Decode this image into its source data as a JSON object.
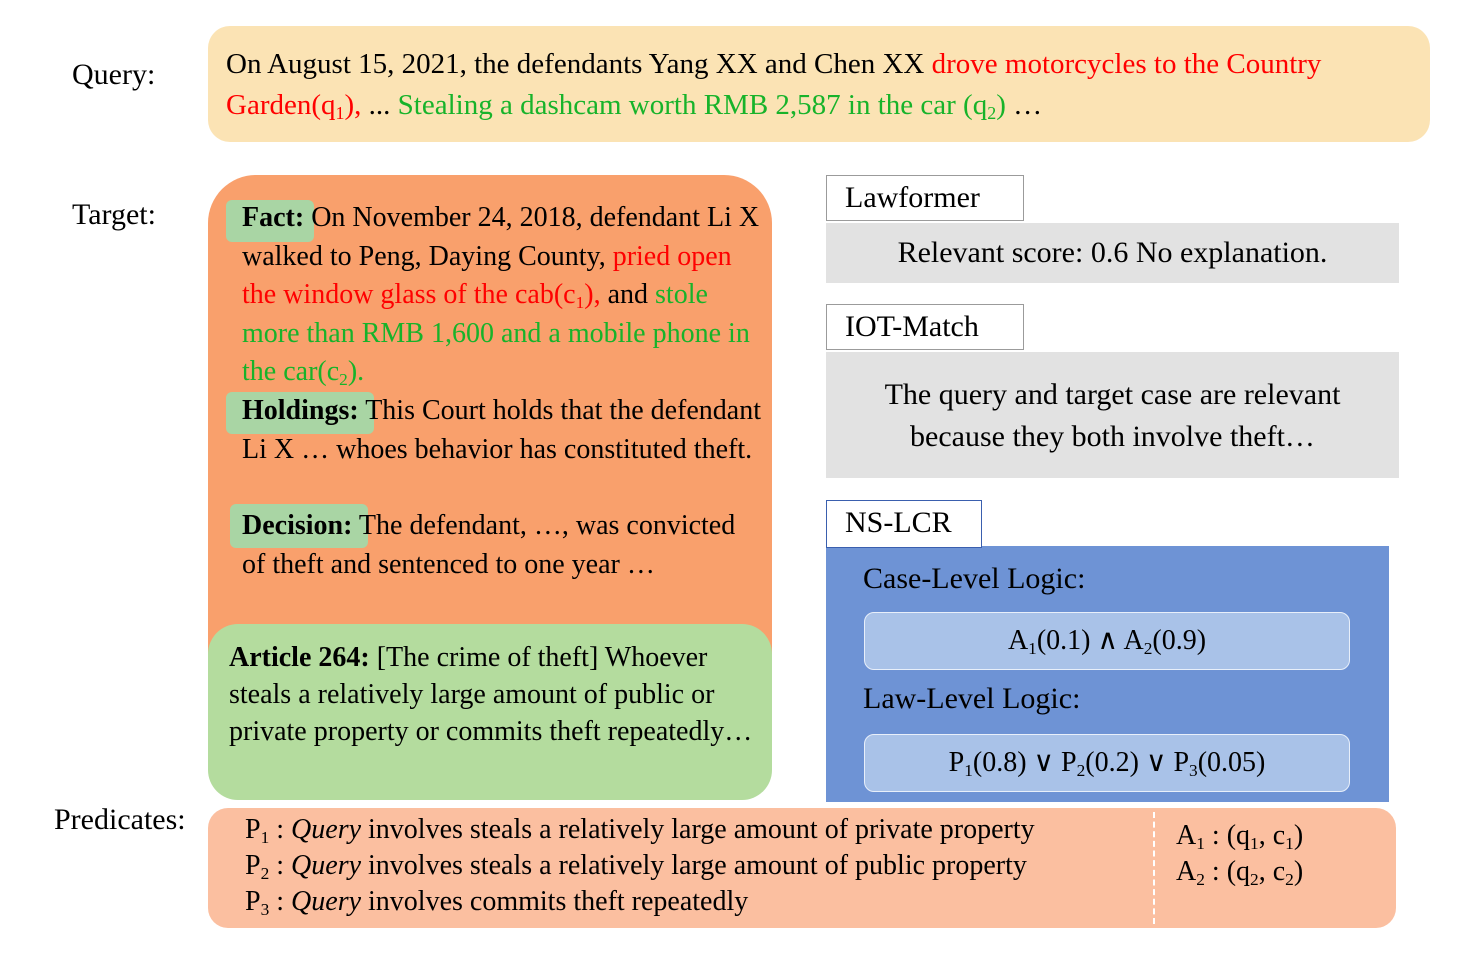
{
  "labels": {
    "query": "Query:",
    "target": "Target:",
    "predicates": "Predicates:"
  },
  "query": {
    "part1": "On August 15, 2021, the defendants Yang XX and Chen XX ",
    "red": "drove motorcycles to the Country Garden(q",
    "red_sub": "1",
    "red_end": "),",
    "mid": " ... ",
    "green": "Stealing a dashcam worth RMB 2,587 in the car (q",
    "green_sub": "2",
    "green_end": ")",
    "tail": " …"
  },
  "target": {
    "fact_label": "Fact:",
    "fact_text": " On November 24, 2018, defendant Li X walked to Peng, Daying County, ",
    "fact_red": "pried open the window glass of the cab(c",
    "fact_red_sub": "1",
    "fact_red_end": "),",
    "fact_and": " and ",
    "fact_green": "stole more than RMB 1,600 and a mobile phone in the car(c",
    "fact_green_sub": "2",
    "fact_green_end": ").",
    "holdings_label": "Holdings:",
    "holdings_text": " This Court holds that the defendant Li X … whoes behavior has constituted theft.",
    "decision_label": "Decision:",
    "decision_text": " The defendant, …, was convicted of theft and sentenced to one year …",
    "article_label": "Article 264:",
    "article_text": " [The crime of theft] Whoever steals a relatively large amount of public or private property or commits theft repeatedly…"
  },
  "models": {
    "lawformer": {
      "name": "Lawformer",
      "output": "Relevant score: 0.6   No explanation."
    },
    "iot_match": {
      "name": "IOT-Match",
      "output": "The query and target case are relevant because they both involve theft…"
    },
    "ns_lcr": {
      "name": "NS-LCR",
      "case_level_label": "Case-Level Logic:",
      "case_formula": {
        "t1": "A",
        "s1": "1",
        "v1": "(0.1) ∧ ",
        "t2": "A",
        "s2": "2",
        "v2": "(0.9)"
      },
      "law_level_label": "Law-Level Logic:",
      "law_formula": {
        "t1": "P",
        "s1": "1",
        "v1": "(0.8) ∨ ",
        "t2": "P",
        "s2": "2",
        "v2": "(0.2) ∨ ",
        "t3": "P",
        "s3": "3",
        "v3": "(0.05)"
      }
    }
  },
  "predicates": [
    {
      "sym": "P",
      "sub": "1",
      "sep": " : ",
      "subject": "Query",
      "text": " involves steals a relatively large amount of  private property"
    },
    {
      "sym": "P",
      "sub": "2",
      "sep": " : ",
      "subject": "Query",
      "text": " involves steals a relatively large amount of  public property"
    },
    {
      "sym": "P",
      "sub": "3",
      "sep": " : ",
      "subject": "Query",
      "text": " involves commits theft repeatedly"
    }
  ],
  "associations": [
    {
      "sym": "A",
      "sub": "1",
      "pre": " : (q",
      "qsub": "1",
      "mid": ", c",
      "csub": "1",
      "end": ")"
    },
    {
      "sym": "A",
      "sub": "2",
      "pre": " : (q",
      "qsub": "2",
      "mid": ", c",
      "csub": "2",
      "end": ")"
    }
  ],
  "colors": {
    "query_bg": "#fbe3b4",
    "target_bg": "#f9a06c",
    "article_bg": "#b4dc9e",
    "highlight": "#a9d5a4",
    "ns_lcr_bg": "#6e93d5",
    "pill_bg": "#a9c2e8",
    "predicates_bg": "#fbbfa0",
    "grey_bg": "#e2e2e2",
    "red_text": "#ff0000",
    "green_text": "#17b32a"
  }
}
